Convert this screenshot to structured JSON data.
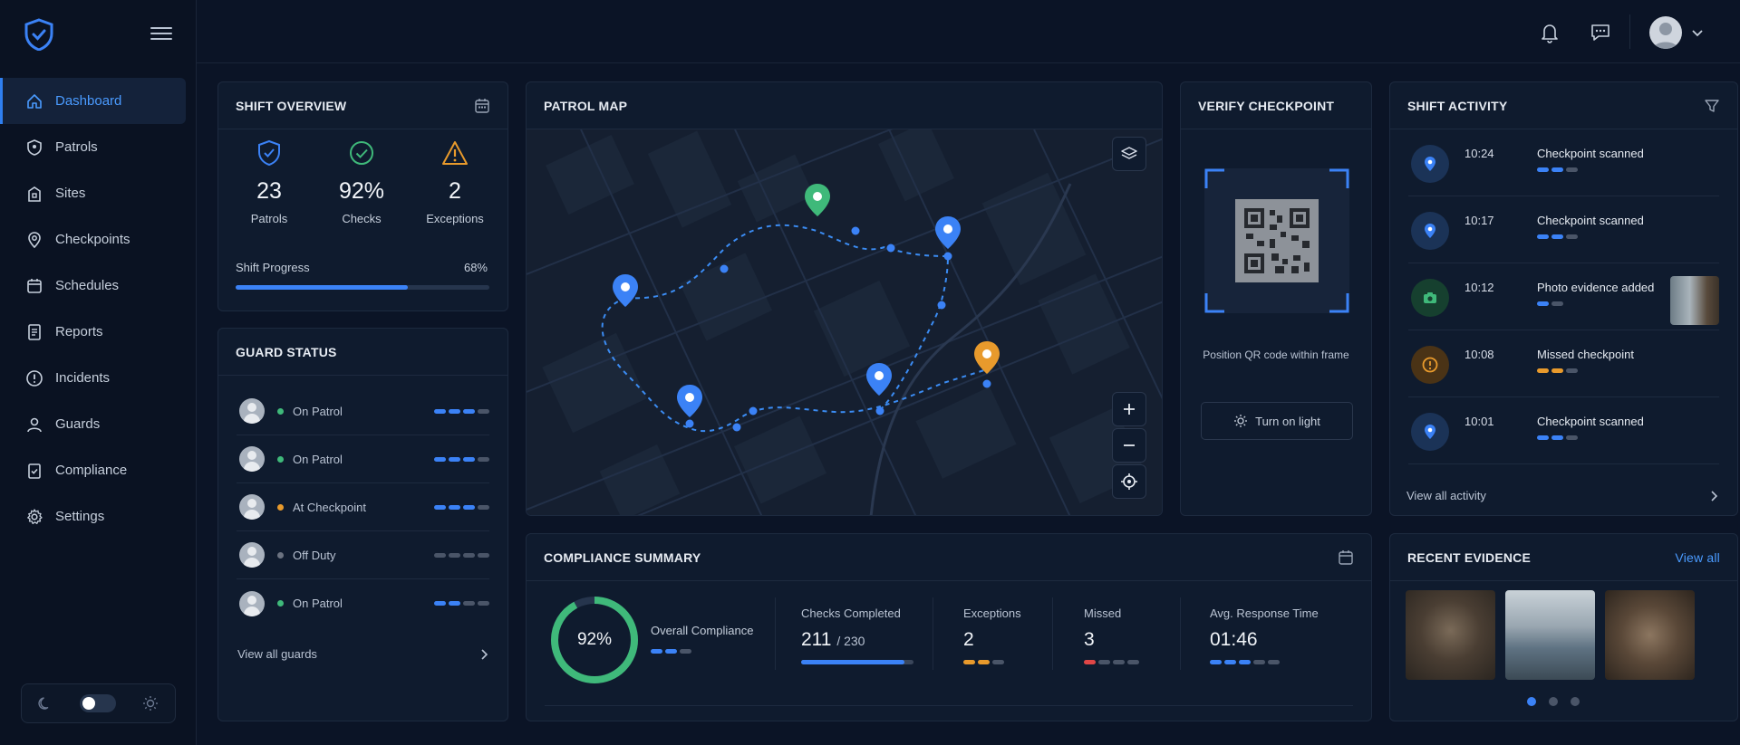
{
  "nav": {
    "items": [
      {
        "label": "Dashboard",
        "icon": "home-icon"
      },
      {
        "label": "Patrols",
        "icon": "shield-icon"
      },
      {
        "label": "Sites",
        "icon": "building-icon"
      },
      {
        "label": "Checkpoints",
        "icon": "location-pin-icon"
      },
      {
        "label": "Schedules",
        "icon": "calendar-icon"
      },
      {
        "label": "Reports",
        "icon": "report-icon"
      },
      {
        "label": "Incidents",
        "icon": "alert-circle-icon"
      },
      {
        "label": "Guards",
        "icon": "user-icon"
      },
      {
        "label": "Compliance",
        "icon": "clipboard-check-icon"
      },
      {
        "label": "Settings",
        "icon": "gear-icon"
      }
    ]
  },
  "shift_overview": {
    "title": "SHIFT OVERVIEW",
    "stats": [
      {
        "value": "23",
        "label": "Patrols",
        "color": "#3b82f6"
      },
      {
        "value": "92%",
        "label": "Checks",
        "color": "#3fb97a"
      },
      {
        "value": "2",
        "label": "Exceptions",
        "color": "#e89a2c"
      }
    ],
    "progress_label": "Shift Progress",
    "progress_text": "68%",
    "progress": 0.68
  },
  "guard_status": {
    "title": "GUARD STATUS",
    "guards": [
      {
        "status": "On Patrol",
        "dot": "#3fb97a",
        "bars": [
          "b",
          "b",
          "b",
          "g"
        ]
      },
      {
        "status": "On Patrol",
        "dot": "#3fb97a",
        "bars": [
          "b",
          "b",
          "b",
          "g"
        ]
      },
      {
        "status": "At Checkpoint",
        "dot": "#e89a2c",
        "bars": [
          "b",
          "b",
          "b",
          "g"
        ]
      },
      {
        "status": "Off Duty",
        "dot": "#6b7280",
        "bars": [
          "g",
          "g",
          "g",
          "g"
        ]
      },
      {
        "status": "On Patrol",
        "dot": "#3fb97a",
        "bars": [
          "b",
          "b",
          "g",
          "g"
        ]
      }
    ],
    "view_all": "View all guards"
  },
  "patrol_map": {
    "title": "PATROL MAP"
  },
  "verify": {
    "title": "VERIFY CHECKPOINT",
    "hint": "Position QR code within frame",
    "light_button": "Turn on light"
  },
  "activity": {
    "title": "SHIFT ACTIVITY",
    "items": [
      {
        "time": "10:24",
        "text": "Checkpoint scanned",
        "kind": "pin"
      },
      {
        "time": "10:17",
        "text": "Checkpoint scanned",
        "kind": "pin"
      },
      {
        "time": "10:12",
        "text": "Photo evidence added",
        "kind": "camera"
      },
      {
        "time": "10:08",
        "text": "Missed checkpoint",
        "kind": "alert"
      },
      {
        "time": "10:01",
        "text": "Checkpoint scanned",
        "kind": "pin"
      }
    ],
    "view_all": "View all activity"
  },
  "compliance": {
    "title": "COMPLIANCE SUMMARY",
    "overall_value": "92%",
    "overall_fraction": 0.92,
    "overall_label": "Overall Compliance",
    "checks_label": "Checks Completed",
    "checks_value": "211",
    "checks_total": "/ 230",
    "exceptions_label": "Exceptions",
    "exceptions_value": "2",
    "missed_label": "Missed",
    "missed_value": "3",
    "response_label": "Avg. Response Time",
    "response_value": "01:46"
  },
  "evidence": {
    "title": "RECENT EVIDENCE",
    "view_all": "View all"
  }
}
